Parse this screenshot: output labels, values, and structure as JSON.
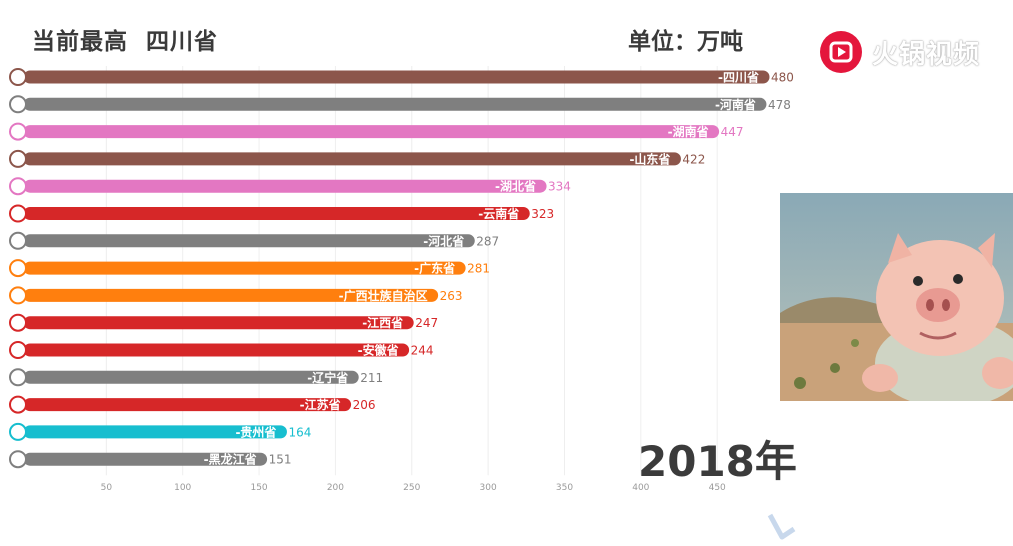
{
  "header": {
    "current_highest_label": "当前最高",
    "current_highest_value": "四川省",
    "unit_label": "单位：万吨"
  },
  "year_label": "2018年",
  "logo": {
    "icon": "huoguo-play-icon",
    "text": "火锅视频",
    "color": "#e4163c"
  },
  "video_thumbnail": {
    "icon": "cartoon-pig-image"
  },
  "chart_data": {
    "type": "bar",
    "orientation": "horizontal",
    "categories": [
      "四川省",
      "河南省",
      "湖南省",
      "山东省",
      "湖北省",
      "云南省",
      "河北省",
      "广东省",
      "广西壮族自治区",
      "江西省",
      "安徽省",
      "辽宁省",
      "江苏省",
      "贵州省",
      "黑龙江省"
    ],
    "values": [
      480,
      478,
      447,
      422,
      334,
      323,
      287,
      281,
      263,
      247,
      244,
      211,
      206,
      164,
      151
    ],
    "colors": [
      "#8c564b",
      "#7f7f7f",
      "#e377c2",
      "#8c564b",
      "#e377c2",
      "#d62728",
      "#7f7f7f",
      "#ff7f0e",
      "#ff7f0e",
      "#d62728",
      "#d62728",
      "#7f7f7f",
      "#d62728",
      "#17becf",
      "#7f7f7f"
    ],
    "x_ticks": [
      50,
      100,
      150,
      200,
      250,
      300,
      350,
      400,
      450
    ],
    "xlim": [
      0,
      485
    ],
    "xlabel": "",
    "ylabel": "",
    "grid": true
  }
}
